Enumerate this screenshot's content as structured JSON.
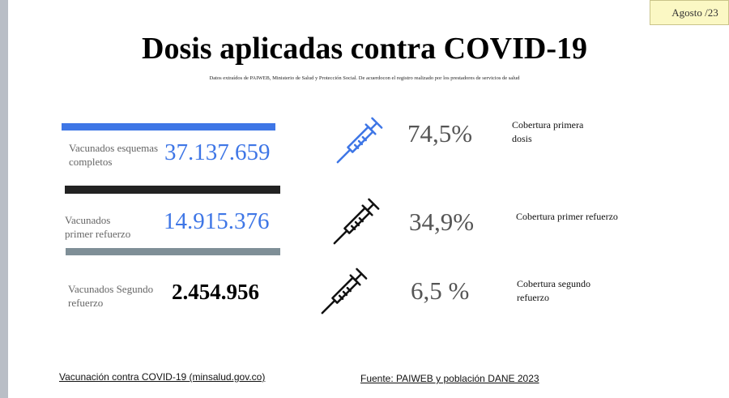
{
  "header": {
    "date_badge": "Agosto /23",
    "title": "Dosis aplicadas contra COVID-19",
    "subtitle": "Datos extraídos de PAIWEB, Ministerio de Salud y Protección Social. De acuerdocon el registro realizado por los prestadores de servicios de salud"
  },
  "stats": [
    {
      "label_line1": "Vacunados esquemas",
      "label_line2": "completos",
      "value": "37.137.659"
    },
    {
      "label_line1": "Vacunados",
      "label_line2": "primer refuerzo",
      "value": "14.915.376"
    },
    {
      "label_line1": "Vacunados Segundo",
      "label_line2": "refuerzo",
      "value": "2.454.956"
    }
  ],
  "coverage": [
    {
      "percent": "74,5%",
      "label_line1": "Cobertura primera",
      "label_line2": "dosis",
      "icon": "syringe-icon",
      "color": "#3e76e6"
    },
    {
      "percent": "34,9%",
      "label_line1": "Cobertura primer  refuerzo",
      "label_line2": "",
      "icon": "syringe-icon",
      "color": "#111111"
    },
    {
      "percent": "6,5 %",
      "label_line1": "Cobertura segundo",
      "label_line2": "refuerzo",
      "icon": "syringe-icon",
      "color": "#111111"
    }
  ],
  "footer": {
    "link_left": "Vacunación contra COVID-19 (minsalud.gov.co)",
    "source": "Fuente: PAIWEB y población DANE 2023"
  },
  "colors": {
    "accent_blue": "#3e76e6",
    "bar_black": "#222222",
    "bar_gray": "#7f8f97",
    "badge_bg": "#fbf8c4"
  }
}
